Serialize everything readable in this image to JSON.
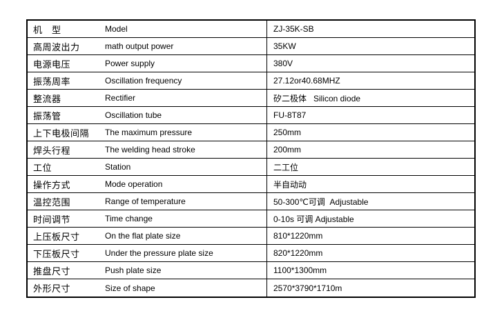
{
  "colors": {
    "border": "#000000",
    "background": "#ffffff",
    "text": "#000000"
  },
  "table": {
    "description": "machine-specification-table",
    "columns": [
      "chinese_label",
      "english_label",
      "value"
    ],
    "rows": [
      {
        "label_cn": "机　型",
        "label_en": "Model",
        "value": "ZJ-35K-SB"
      },
      {
        "label_cn": "高周波出力",
        "label_en": "math output power",
        "value": "35KW"
      },
      {
        "label_cn": "电源电压",
        "label_en": "Power supply",
        "value": "380V"
      },
      {
        "label_cn": "振荡周率",
        "label_en": "Oscillation frequency",
        "value": "27.12or40.68MHZ"
      },
      {
        "label_cn": "整流器",
        "label_en": "Rectifier",
        "value": "矽二极体   Silicon diode"
      },
      {
        "label_cn": "振荡管",
        "label_en": "Oscillation tube",
        "value": "FU-8T87"
      },
      {
        "label_cn": "上下电极间隔",
        "label_en": "The maximum pressure",
        "value": "250mm"
      },
      {
        "label_cn": "焊头行程",
        "label_en": "The welding head stroke",
        "value": "200mm"
      },
      {
        "label_cn": "工位",
        "label_en": "Station",
        "value": "二工位"
      },
      {
        "label_cn": "操作方式",
        "label_en": "Mode operation",
        "value": "半自动动"
      },
      {
        "label_cn": "温控范围",
        "label_en": "Range of temperature",
        "value": "50-300℃可调  Adjustable"
      },
      {
        "label_cn": "时间调节",
        "label_en": "Time change",
        "value": "0-10s 可调 Adjustable"
      },
      {
        "label_cn": "上压板尺寸",
        "label_en": "On the flat plate size",
        "value": "810*1220mm"
      },
      {
        "label_cn": "下压板尺寸",
        "label_en": "Under the pressure plate size",
        "value": "820*1220mm"
      },
      {
        "label_cn": "推盘尺寸",
        "label_en": "Push plate size",
        "value": "1100*1300mm"
      },
      {
        "label_cn": "外形尺寸",
        "label_en": "Size of shape",
        "value": "2570*3790*1710m"
      }
    ]
  }
}
